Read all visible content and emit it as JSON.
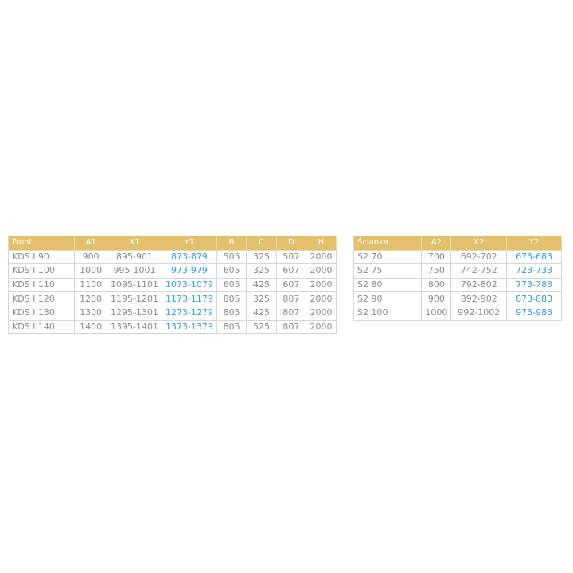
{
  "accent_color": "#e3c16c",
  "highlight_color": "#3b9ddb",
  "front_table": {
    "headers": [
      "Front",
      "A1",
      "X1",
      "Y1",
      "B",
      "C",
      "D",
      "H"
    ],
    "rows": [
      [
        "KDS I 90",
        "900",
        "895-901",
        "873-879",
        "505",
        "325",
        "507",
        "2000"
      ],
      [
        "KDS I 100",
        "1000",
        "995-1001",
        "973-979",
        "605",
        "325",
        "607",
        "2000"
      ],
      [
        "KDS I 110",
        "1100",
        "1095-1101",
        "1073-1079",
        "605",
        "425",
        "607",
        "2000"
      ],
      [
        "KDS I 120",
        "1200",
        "1195-1201",
        "1173-1179",
        "805",
        "325",
        "807",
        "2000"
      ],
      [
        "KDS I 130",
        "1300",
        "1295-1301",
        "1273-1279",
        "805",
        "425",
        "807",
        "2000"
      ],
      [
        "KDS I 140",
        "1400",
        "1395-1401",
        "1373-1379",
        "805",
        "525",
        "807",
        "2000"
      ]
    ]
  },
  "wall_table": {
    "headers": [
      "Ścianka",
      "A2",
      "X2",
      "Y2"
    ],
    "rows": [
      [
        "S2 70",
        "700",
        "692-702",
        "673-683"
      ],
      [
        "S2 75",
        "750",
        "742-752",
        "723-733"
      ],
      [
        "S2 80",
        "800",
        "792-802",
        "773-783"
      ],
      [
        "S2 90",
        "900",
        "892-902",
        "873-883"
      ],
      [
        "S2 100",
        "1000",
        "992-1002",
        "973-983"
      ]
    ]
  }
}
